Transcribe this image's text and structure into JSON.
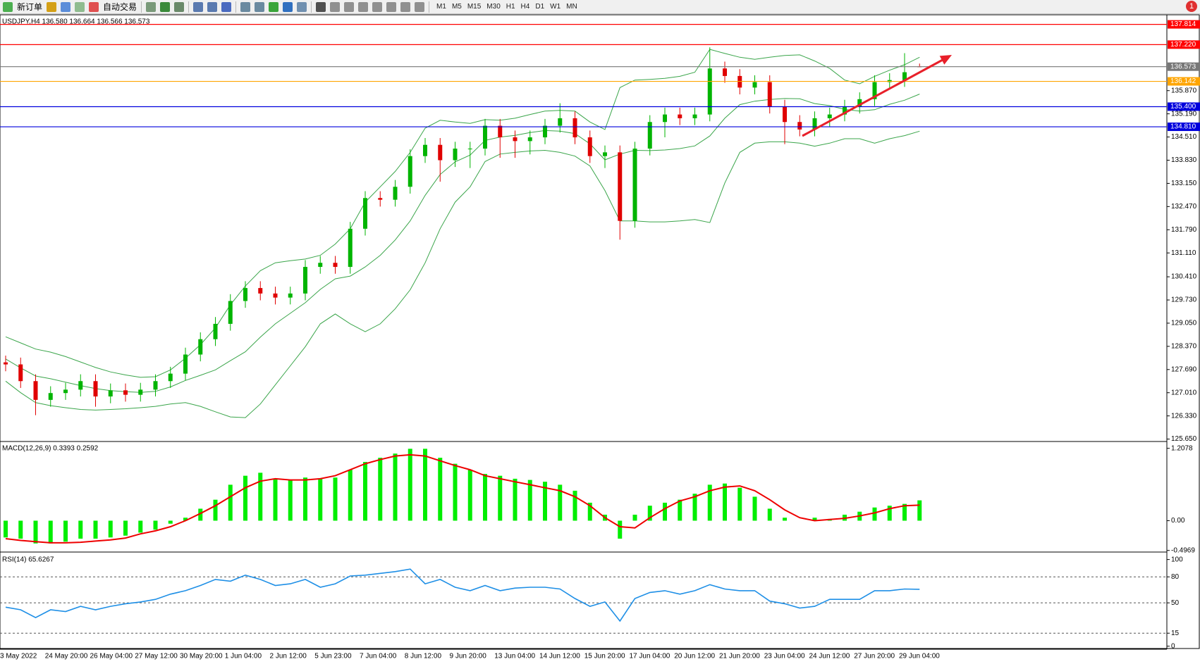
{
  "toolbar": {
    "buttons": [
      "新订单",
      "自动交易"
    ],
    "timeframes": [
      "M1",
      "M5",
      "M15",
      "M30",
      "H1",
      "H4",
      "D1",
      "W1",
      "MN"
    ],
    "alerts": 1
  },
  "chart_data": [
    {
      "type": "candlestick",
      "title": "USDJPY,H4  136.580 136.664 136.566 136.573",
      "categories": [
        "3 May 2022",
        null,
        null,
        "24 May 20:00",
        null,
        null,
        "26 May 04:00",
        null,
        null,
        "27 May 12:00",
        null,
        null,
        "30 May 20:00",
        null,
        null,
        "1 Jun 04:00",
        null,
        null,
        "2 Jun 12:00",
        null,
        null,
        "5 Jun 23:00",
        null,
        null,
        "7 Jun 04:00",
        null,
        null,
        "8 Jun 12:00",
        null,
        null,
        "9 Jun 20:00",
        null,
        null,
        "13 Jun 04:00",
        null,
        null,
        "14 Jun 12:00",
        null,
        null,
        "15 Jun 20:00",
        null,
        null,
        "17 Jun 04:00",
        null,
        null,
        "20 Jun 12:00",
        null,
        null,
        "21 Jun 20:00",
        null,
        null,
        "23 Jun 04:00",
        null,
        null,
        "24 Jun 12:00",
        null,
        null,
        "27 Jun 20:00",
        null,
        null,
        "29 Jun 04:00",
        null
      ],
      "open": [
        127.9,
        127.84,
        127.35,
        126.8,
        127.0,
        127.1,
        127.35,
        126.9,
        127.08,
        126.95,
        127.1,
        127.35,
        127.57,
        128.13,
        128.58,
        129.03,
        129.7,
        130.08,
        129.92,
        129.8,
        129.92,
        130.7,
        130.82,
        130.7,
        131.82,
        132.72,
        132.67,
        133.05,
        133.95,
        134.28,
        133.83,
        134.17,
        134.17,
        134.84,
        134.5,
        134.39,
        134.5,
        134.84,
        135.06,
        134.5,
        133.95,
        134.06,
        132.05,
        134.17,
        134.95,
        135.17,
        135.06,
        135.17,
        136.52,
        136.3,
        135.96,
        136.12,
        135.4,
        134.95,
        134.73,
        135.06,
        135.17,
        135.4,
        135.62,
        136.12,
        136.18,
        136.58
      ],
      "high": [
        128.1,
        128.04,
        127.55,
        127.2,
        127.3,
        127.55,
        127.55,
        127.28,
        127.28,
        127.3,
        127.55,
        127.77,
        128.33,
        128.78,
        129.23,
        129.9,
        130.28,
        130.28,
        130.12,
        130.12,
        130.9,
        131.02,
        131.02,
        132.02,
        132.92,
        132.92,
        133.25,
        134.15,
        134.48,
        134.48,
        134.37,
        134.37,
        135.04,
        135.04,
        134.7,
        134.7,
        135.04,
        135.5,
        135.26,
        134.7,
        134.26,
        134.26,
        134.37,
        135.15,
        135.37,
        135.37,
        135.37,
        137.14,
        136.72,
        136.5,
        136.32,
        136.32,
        135.6,
        135.15,
        135.26,
        135.37,
        135.6,
        135.82,
        136.32,
        136.38,
        136.97,
        136.664
      ],
      "low": [
        127.64,
        127.15,
        126.35,
        126.6,
        126.8,
        126.9,
        126.6,
        126.7,
        126.75,
        126.75,
        126.9,
        127.15,
        127.37,
        127.93,
        128.38,
        128.83,
        129.5,
        129.72,
        129.6,
        129.6,
        129.72,
        130.5,
        130.5,
        130.5,
        131.62,
        132.47,
        132.47,
        132.85,
        133.75,
        133.2,
        133.63,
        133.6,
        133.97,
        133.9,
        133.9,
        134.0,
        134.3,
        134.64,
        134.3,
        133.75,
        133.6,
        131.5,
        131.85,
        133.97,
        134.5,
        134.86,
        134.86,
        134.97,
        136.1,
        135.76,
        135.76,
        135.2,
        134.3,
        134.53,
        134.53,
        134.8,
        134.97,
        135.2,
        135.42,
        135.92,
        135.98,
        136.566
      ],
      "close": [
        127.84,
        127.35,
        126.8,
        127.0,
        127.1,
        127.35,
        126.9,
        127.08,
        126.95,
        127.1,
        127.35,
        127.57,
        128.13,
        128.58,
        129.03,
        129.7,
        130.08,
        129.92,
        129.8,
        129.92,
        130.7,
        130.82,
        130.7,
        131.82,
        132.72,
        132.67,
        133.05,
        133.95,
        134.28,
        133.83,
        134.17,
        134.17,
        134.84,
        134.5,
        134.39,
        134.5,
        134.84,
        135.06,
        134.5,
        133.95,
        134.06,
        132.05,
        134.17,
        134.95,
        135.17,
        135.06,
        135.17,
        136.52,
        136.3,
        135.96,
        136.12,
        135.4,
        134.95,
        134.73,
        135.06,
        135.17,
        135.4,
        135.62,
        136.12,
        136.18,
        136.41,
        136.573
      ],
      "up_color": "#00b400",
      "down_color": "#e00000",
      "bollinger": {
        "color": "#3aa54a",
        "upper": [
          128.65,
          128.47,
          128.29,
          128.2,
          128.07,
          127.91,
          127.75,
          127.62,
          127.53,
          127.46,
          127.48,
          127.68,
          128.02,
          128.42,
          128.91,
          129.59,
          130.14,
          130.59,
          130.82,
          130.88,
          130.93,
          131.04,
          131.37,
          131.82,
          132.6,
          133.05,
          133.5,
          134.06,
          134.77,
          135.0,
          134.95,
          134.91,
          135.02,
          135.0,
          135.06,
          135.17,
          135.27,
          135.29,
          135.27,
          134.95,
          134.73,
          135.96,
          136.18,
          136.2,
          136.23,
          136.29,
          136.41,
          137.08,
          136.96,
          136.85,
          136.79,
          136.85,
          136.9,
          136.92,
          136.74,
          136.52,
          136.18,
          136.07,
          136.29,
          136.47,
          136.63,
          136.85
        ],
        "middle": [
          128.0,
          127.74,
          127.5,
          127.42,
          127.32,
          127.22,
          127.13,
          127.07,
          127.04,
          127.02,
          127.05,
          127.18,
          127.37,
          127.52,
          127.68,
          127.95,
          128.21,
          128.64,
          129.03,
          129.34,
          129.65,
          130.04,
          130.35,
          130.43,
          130.7,
          131.04,
          131.49,
          132.05,
          132.8,
          133.41,
          133.78,
          133.98,
          134.41,
          134.51,
          134.56,
          134.64,
          134.7,
          134.68,
          134.61,
          134.31,
          133.84,
          134.01,
          134.12,
          134.11,
          134.13,
          134.17,
          134.25,
          134.54,
          135.06,
          135.46,
          135.56,
          135.61,
          135.64,
          135.63,
          135.49,
          135.43,
          135.32,
          135.27,
          135.31,
          135.47,
          135.59,
          135.77
        ],
        "lower": [
          127.35,
          127.01,
          126.72,
          126.63,
          126.57,
          126.52,
          126.5,
          126.52,
          126.54,
          126.57,
          126.61,
          126.68,
          126.72,
          126.61,
          126.45,
          126.3,
          126.28,
          126.68,
          127.24,
          127.8,
          128.36,
          129.03,
          129.32,
          129.03,
          128.8,
          129.03,
          129.47,
          130.03,
          130.82,
          131.82,
          132.6,
          133.05,
          133.79,
          134.01,
          134.06,
          134.1,
          134.12,
          134.06,
          133.95,
          133.66,
          132.94,
          132.05,
          132.05,
          132.02,
          132.02,
          132.05,
          132.09,
          132.0,
          133.16,
          134.06,
          134.33,
          134.37,
          134.37,
          134.33,
          134.24,
          134.33,
          134.46,
          134.46,
          134.33,
          134.46,
          134.55,
          134.68
        ]
      },
      "levels": [
        {
          "value": 137.814,
          "label": "137.814",
          "color": "#ff0000"
        },
        {
          "value": 137.22,
          "label": "137.220",
          "color": "#ff0000"
        },
        {
          "value": 136.573,
          "label": "136.573",
          "color": "#777777"
        },
        {
          "value": 136.142,
          "label": "136.142",
          "color": "#ffa500"
        },
        {
          "value": 135.4,
          "label": "135.400",
          "color": "#0000dd"
        },
        {
          "value": 134.81,
          "label": "134.810",
          "color": "#0000dd"
        }
      ],
      "ylim": [
        125.6,
        138.074
      ],
      "yticks": [
        {
          "value": 135.87,
          "label": "135.870"
        },
        {
          "value": 135.19,
          "label": "135.190"
        },
        {
          "value": 134.51,
          "label": "134.510"
        },
        {
          "value": 133.83,
          "label": "133.830"
        },
        {
          "value": 133.15,
          "label": "133.150"
        },
        {
          "value": 132.47,
          "label": "132.470"
        },
        {
          "value": 131.79,
          "label": "131.790"
        },
        {
          "value": 131.11,
          "label": "131.110"
        },
        {
          "value": 130.41,
          "label": "130.410"
        },
        {
          "value": 129.73,
          "label": "129.730"
        },
        {
          "value": 129.05,
          "label": "129.050"
        },
        {
          "value": 128.37,
          "label": "128.370"
        },
        {
          "value": 127.69,
          "label": "127.690"
        },
        {
          "value": 127.01,
          "label": "127.010"
        },
        {
          "value": 126.33,
          "label": "126.330"
        },
        {
          "value": 125.65,
          "label": "125.650"
        }
      ]
    },
    {
      "type": "macd",
      "title": "MACD(12,26,9) 0.3393 0.2592",
      "histogram": {
        "color": "#00ee00",
        "values": [
          -0.28,
          -0.3,
          -0.38,
          -0.38,
          -0.35,
          -0.3,
          -0.3,
          -0.28,
          -0.25,
          -0.2,
          -0.15,
          -0.05,
          0.05,
          0.2,
          0.35,
          0.6,
          0.75,
          0.8,
          0.7,
          0.68,
          0.72,
          0.7,
          0.72,
          0.85,
          0.98,
          1.05,
          1.12,
          1.2,
          1.2,
          1.05,
          0.95,
          0.85,
          0.78,
          0.75,
          0.7,
          0.68,
          0.65,
          0.6,
          0.5,
          0.3,
          0.1,
          -0.3,
          0.1,
          0.25,
          0.3,
          0.35,
          0.45,
          0.6,
          0.62,
          0.55,
          0.4,
          0.2,
          0.05,
          0.0,
          0.05,
          0.03,
          0.1,
          0.15,
          0.22,
          0.25,
          0.28,
          0.3393
        ]
      },
      "signal": {
        "color": "#ee0000",
        "values": [
          -0.3,
          -0.33,
          -0.35,
          -0.37,
          -0.37,
          -0.36,
          -0.34,
          -0.32,
          -0.29,
          -0.22,
          -0.17,
          -0.1,
          0.0,
          0.12,
          0.25,
          0.4,
          0.55,
          0.66,
          0.7,
          0.68,
          0.68,
          0.7,
          0.75,
          0.85,
          0.95,
          1.02,
          1.08,
          1.1,
          1.08,
          1.0,
          0.92,
          0.85,
          0.75,
          0.7,
          0.65,
          0.6,
          0.55,
          0.5,
          0.4,
          0.25,
          0.05,
          -0.1,
          -0.12,
          0.05,
          0.2,
          0.33,
          0.4,
          0.5,
          0.56,
          0.58,
          0.5,
          0.35,
          0.18,
          0.05,
          0.0,
          0.02,
          0.04,
          0.08,
          0.13,
          0.2,
          0.25,
          0.2592
        ]
      },
      "ylim": [
        -0.5,
        1.31
      ],
      "yticks": [
        {
          "value": 1.2078,
          "label": "1.2078"
        },
        {
          "value": 0,
          "label": "0.00"
        },
        {
          "value": -0.4969,
          "label": "-0.4969"
        }
      ]
    },
    {
      "type": "line",
      "title": "RSI(14) 65.6267",
      "color": "#1e8fe6",
      "values": [
        45,
        42,
        33,
        42,
        40,
        46,
        42,
        46,
        49,
        51,
        54,
        60,
        64,
        70,
        77,
        75,
        82,
        77,
        70,
        72,
        77,
        68,
        72,
        81,
        82,
        84,
        86,
        89,
        72,
        77,
        68,
        64,
        70,
        64,
        67,
        68,
        68,
        66,
        55,
        46,
        51,
        29,
        55,
        62,
        64,
        60,
        64,
        71,
        66,
        64,
        64,
        52,
        49,
        44,
        46,
        54,
        54,
        54,
        64,
        64,
        66,
        65.6267
      ],
      "ylim": [
        -3.5,
        107
      ],
      "yticks": [
        100,
        80,
        50,
        15,
        0
      ],
      "dashed_levels": [
        80,
        50,
        15
      ]
    }
  ]
}
